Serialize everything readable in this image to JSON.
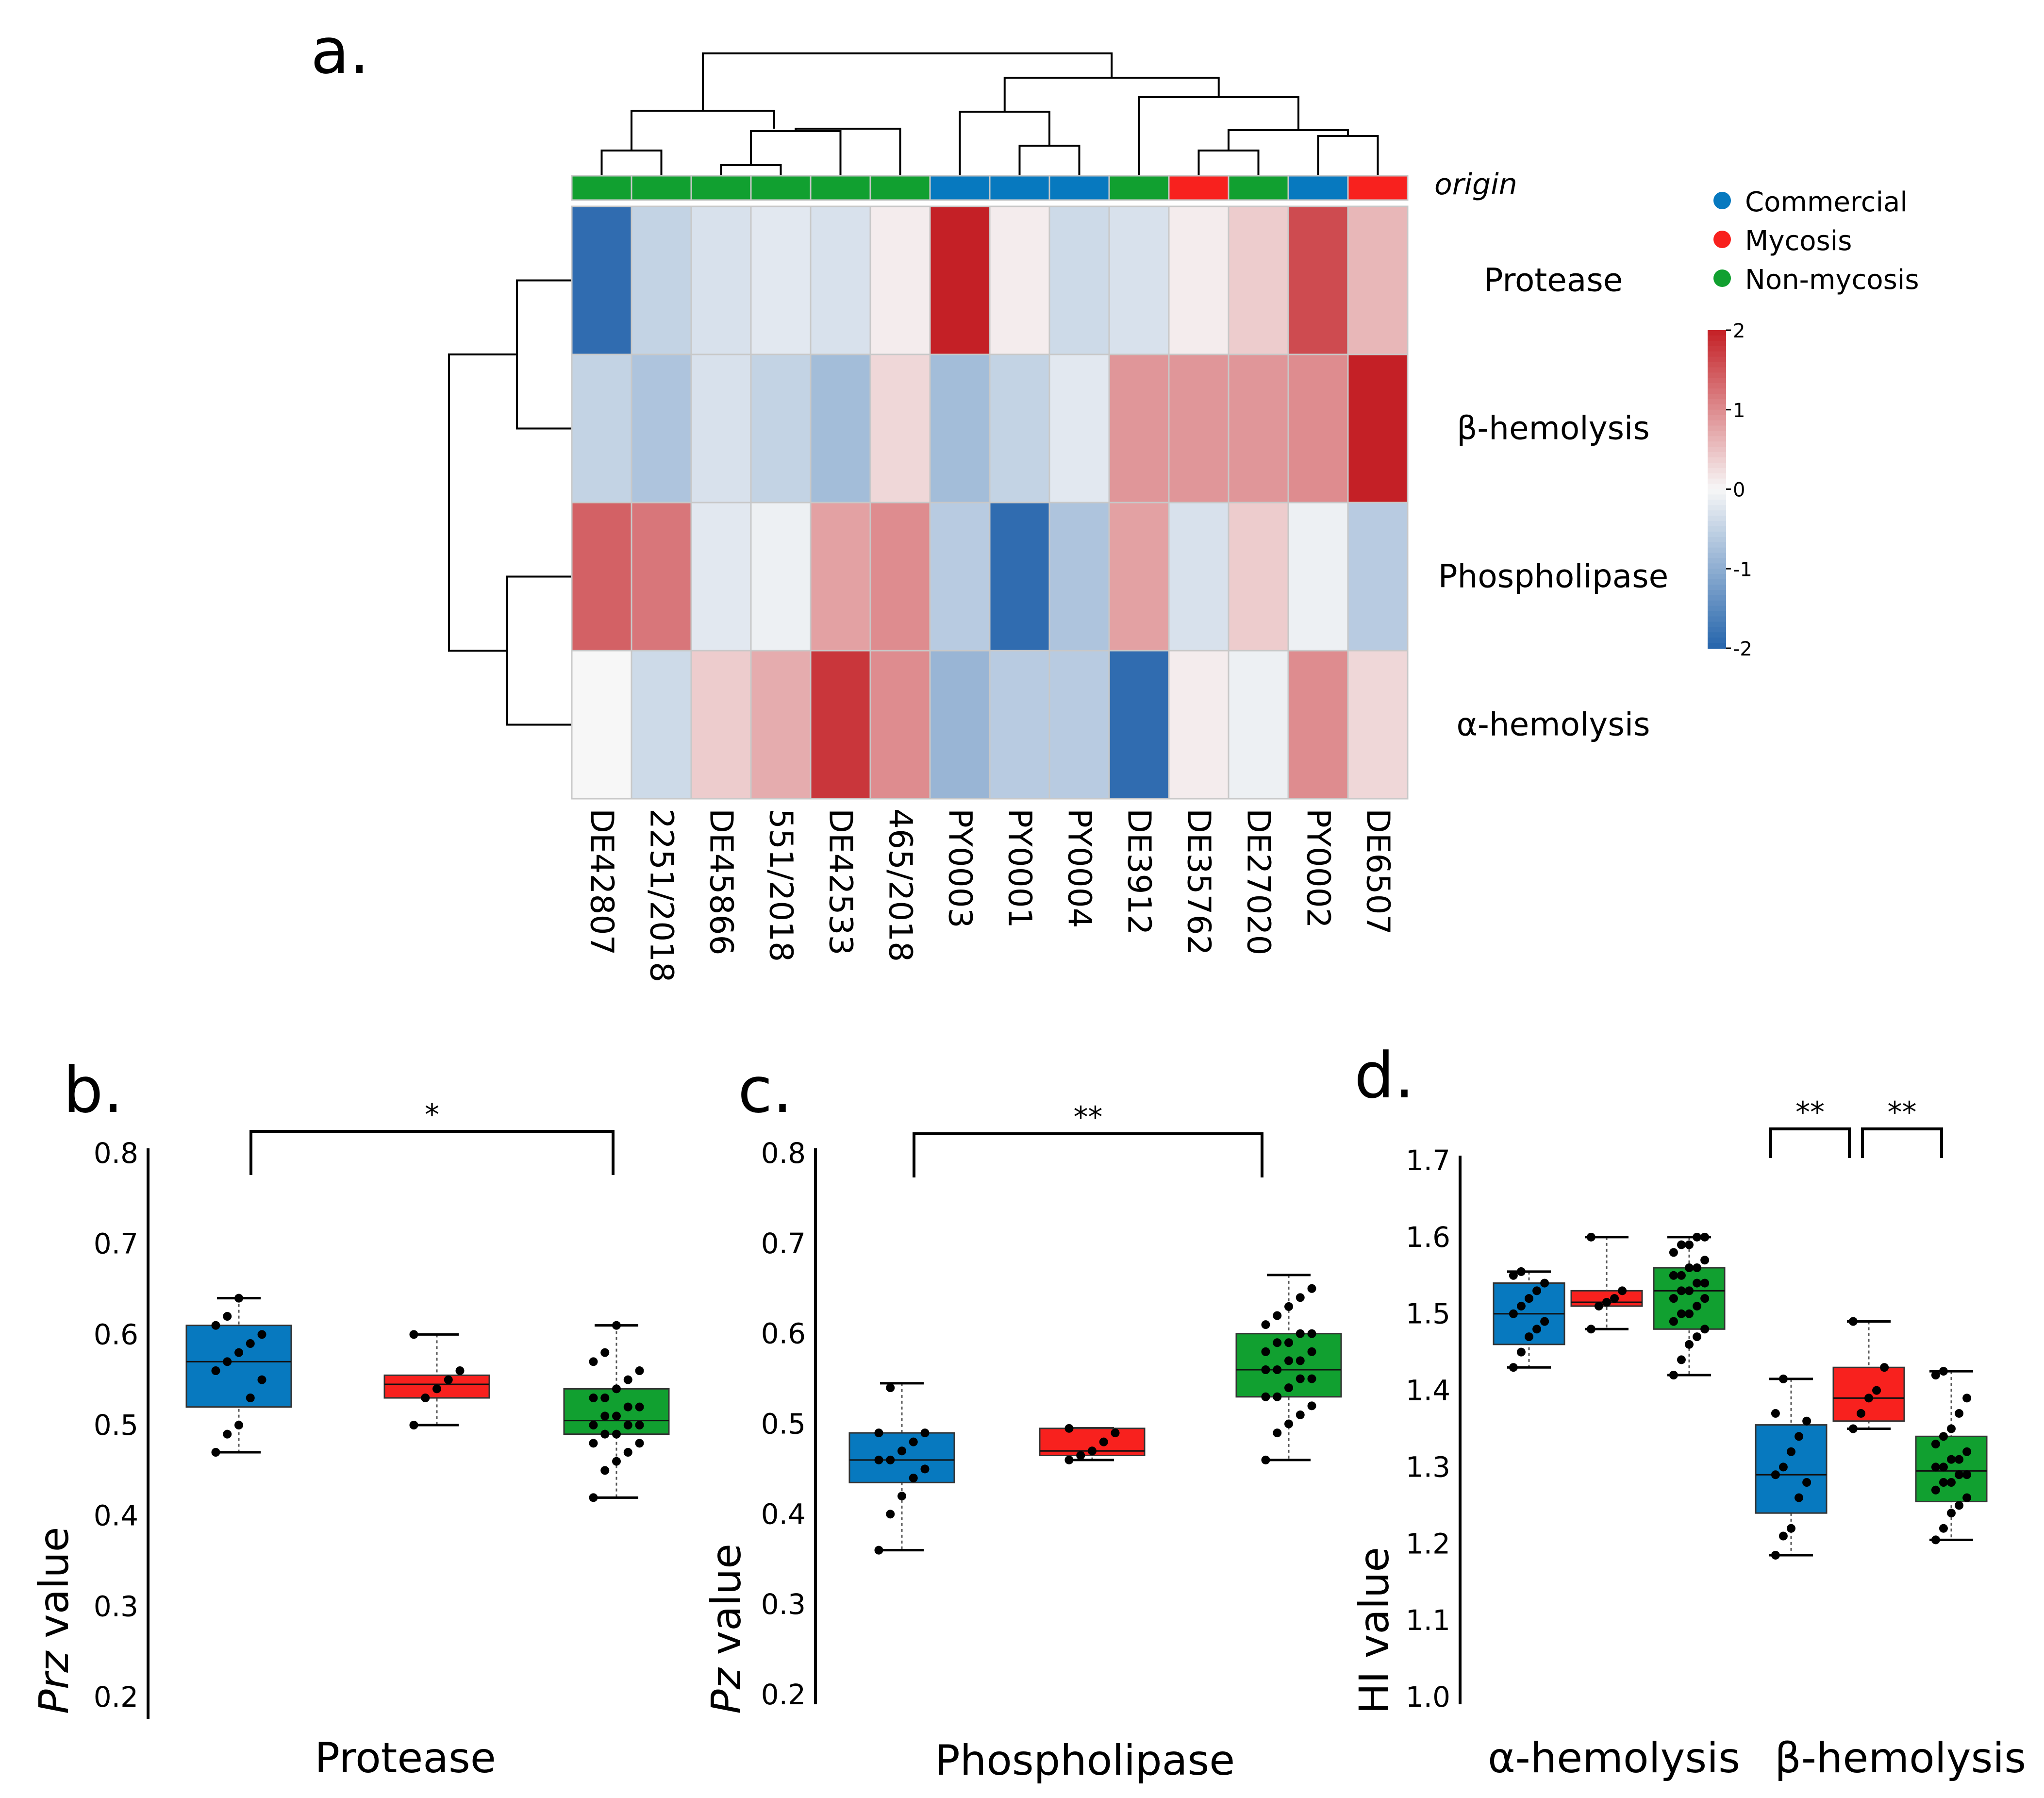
{
  "panel_labels": [
    "a.",
    "b.",
    "c.",
    "d."
  ],
  "colors": {
    "Commercial": "#0779bf",
    "Mycosis": "#f8211e",
    "Non-mycosis": "#11a030",
    "heat_low": "#2565ac",
    "heat_mid": "#f7f7f7",
    "heat_high": "#c42026"
  },
  "chart_data": [
    {
      "type": "heatmap",
      "panel": "a.",
      "annotation_title": "origin",
      "columns": [
        "DE42807",
        "2251/2018",
        "DE45866",
        "551/2018",
        "DE42533",
        "465/2018",
        "PY0003",
        "PY0001",
        "PY0004",
        "DE3912",
        "DE35762",
        "DE27020",
        "PY0002",
        "DE6507"
      ],
      "column_origin": [
        "Non-mycosis",
        "Non-mycosis",
        "Non-mycosis",
        "Non-mycosis",
        "Non-mycosis",
        "Non-mycosis",
        "Commercial",
        "Commercial",
        "Commercial",
        "Non-mycosis",
        "Mycosis",
        "Non-mycosis",
        "Commercial",
        "Mycosis"
      ],
      "rows": [
        "Protease",
        "β-hemolysis",
        "Phospholipase",
        "α-hemolysis"
      ],
      "values": [
        [
          -1.9,
          -0.5,
          -0.3,
          -0.2,
          -0.3,
          0.1,
          2.0,
          0.1,
          -0.4,
          -0.3,
          0.1,
          0.4,
          1.6,
          0.6
        ],
        [
          -0.5,
          -0.7,
          -0.3,
          -0.5,
          -0.8,
          0.3,
          -0.8,
          -0.5,
          -0.2,
          0.9,
          0.9,
          0.9,
          1.0,
          2.0
        ],
        [
          1.4,
          1.2,
          -0.2,
          -0.1,
          0.8,
          1.0,
          -0.6,
          -1.9,
          -0.7,
          0.8,
          -0.3,
          0.4,
          -0.1,
          -0.6
        ],
        [
          0.0,
          -0.4,
          0.4,
          0.7,
          1.8,
          1.0,
          -0.9,
          -0.6,
          -0.6,
          -1.9,
          0.1,
          -0.1,
          1.0,
          0.3
        ]
      ],
      "legend": {
        "entries": [
          "Commercial",
          "Mycosis",
          "Non-mycosis"
        ],
        "placement": "top-right"
      },
      "colorbar": {
        "ticks": [
          "2",
          "1",
          "0",
          "-1",
          "-2"
        ],
        "range": [
          -2,
          2
        ]
      },
      "column_dendrogram": true,
      "row_dendrogram": true
    },
    {
      "type": "box",
      "panel": "b.",
      "ylabel_italic": "Prz",
      "ylabel_rest": " value",
      "xlabel": "Protease",
      "yticks": [
        "0.2",
        "0.3",
        "0.4",
        "0.5",
        "0.6",
        "0.7",
        "0.8"
      ],
      "ylim": [
        0.2,
        0.8
      ],
      "groups": [
        {
          "group": "Commercial",
          "min": 0.47,
          "q1": 0.52,
          "median": 0.57,
          "q3": 0.61,
          "max": 0.64,
          "points": [
            0.47,
            0.49,
            0.5,
            0.53,
            0.55,
            0.56,
            0.57,
            0.58,
            0.59,
            0.6,
            0.61,
            0.62,
            0.64
          ]
        },
        {
          "group": "Mycosis",
          "min": 0.5,
          "q1": 0.53,
          "median": 0.545,
          "q3": 0.555,
          "max": 0.6,
          "points": [
            0.5,
            0.53,
            0.54,
            0.55,
            0.56,
            0.6
          ]
        },
        {
          "group": "Non-mycosis",
          "min": 0.42,
          "q1": 0.49,
          "median": 0.505,
          "q3": 0.54,
          "max": 0.61,
          "points": [
            0.42,
            0.45,
            0.46,
            0.47,
            0.48,
            0.48,
            0.49,
            0.49,
            0.5,
            0.5,
            0.5,
            0.51,
            0.51,
            0.52,
            0.52,
            0.53,
            0.53,
            0.54,
            0.55,
            0.56,
            0.57,
            0.58,
            0.61
          ]
        }
      ],
      "significance": [
        {
          "from": "Commercial",
          "to": "Non-mycosis",
          "label": "*"
        }
      ]
    },
    {
      "type": "box",
      "panel": "c.",
      "ylabel_italic": "Pz",
      "ylabel_rest": " value",
      "xlabel": "Phospholipase",
      "yticks": [
        "0.2",
        "0.3",
        "0.4",
        "0.5",
        "0.6",
        "0.7",
        "0.8"
      ],
      "ylim": [
        0.2,
        0.8
      ],
      "groups": [
        {
          "group": "Commercial",
          "min": 0.36,
          "q1": 0.435,
          "median": 0.46,
          "q3": 0.49,
          "max": 0.545,
          "points": [
            0.36,
            0.4,
            0.42,
            0.44,
            0.45,
            0.46,
            0.46,
            0.47,
            0.48,
            0.49,
            0.49,
            0.54
          ]
        },
        {
          "group": "Mycosis",
          "min": 0.46,
          "q1": 0.465,
          "median": 0.47,
          "q3": 0.495,
          "max": 0.495,
          "points": [
            0.46,
            0.465,
            0.47,
            0.48,
            0.49,
            0.495
          ]
        },
        {
          "group": "Non-mycosis",
          "min": 0.46,
          "q1": 0.53,
          "median": 0.56,
          "q3": 0.6,
          "max": 0.665,
          "points": [
            0.46,
            0.49,
            0.5,
            0.51,
            0.52,
            0.53,
            0.53,
            0.54,
            0.55,
            0.55,
            0.56,
            0.56,
            0.57,
            0.57,
            0.58,
            0.58,
            0.59,
            0.59,
            0.6,
            0.6,
            0.61,
            0.62,
            0.63,
            0.64,
            0.65
          ]
        }
      ],
      "significance": [
        {
          "from": "Commercial",
          "to": "Non-mycosis",
          "label": "**"
        }
      ]
    },
    {
      "type": "box",
      "panel": "d.",
      "ylabel_italic": "",
      "ylabel_rest": "HI value",
      "yticks": [
        "1.0",
        "1.1",
        "1.2",
        "1.3",
        "1.4",
        "1.5",
        "1.6",
        "1.7"
      ],
      "ylim": [
        1.0,
        1.7
      ],
      "categories": [
        "α-hemolysis",
        "β-hemolysis"
      ],
      "groups": [
        {
          "category": "α-hemolysis",
          "group": "Commercial",
          "min": 1.43,
          "q1": 1.46,
          "median": 1.5,
          "q3": 1.54,
          "max": 1.555,
          "points": [
            1.43,
            1.45,
            1.47,
            1.48,
            1.49,
            1.5,
            1.51,
            1.52,
            1.53,
            1.54,
            1.55,
            1.555
          ]
        },
        {
          "category": "α-hemolysis",
          "group": "Mycosis",
          "min": 1.48,
          "q1": 1.51,
          "median": 1.515,
          "q3": 1.53,
          "max": 1.6,
          "points": [
            1.48,
            1.51,
            1.515,
            1.52,
            1.53,
            1.6
          ]
        },
        {
          "category": "α-hemolysis",
          "group": "Non-mycosis",
          "min": 1.42,
          "q1": 1.48,
          "median": 1.53,
          "q3": 1.56,
          "max": 1.6,
          "points": [
            1.42,
            1.44,
            1.46,
            1.47,
            1.48,
            1.49,
            1.5,
            1.5,
            1.51,
            1.52,
            1.52,
            1.53,
            1.53,
            1.54,
            1.54,
            1.55,
            1.55,
            1.56,
            1.56,
            1.57,
            1.58,
            1.59,
            1.59,
            1.6,
            1.6
          ]
        },
        {
          "category": "β-hemolysis",
          "group": "Commercial",
          "min": 1.185,
          "q1": 1.24,
          "median": 1.29,
          "q3": 1.355,
          "max": 1.415,
          "points": [
            1.185,
            1.21,
            1.22,
            1.26,
            1.28,
            1.29,
            1.3,
            1.32,
            1.34,
            1.36,
            1.37,
            1.415
          ]
        },
        {
          "category": "β-hemolysis",
          "group": "Mycosis",
          "min": 1.35,
          "q1": 1.36,
          "median": 1.39,
          "q3": 1.43,
          "max": 1.49,
          "points": [
            1.35,
            1.37,
            1.39,
            1.4,
            1.43,
            1.49
          ]
        },
        {
          "category": "β-hemolysis",
          "group": "Non-mycosis",
          "min": 1.205,
          "q1": 1.255,
          "median": 1.295,
          "q3": 1.34,
          "max": 1.425,
          "points": [
            1.205,
            1.22,
            1.24,
            1.25,
            1.26,
            1.27,
            1.28,
            1.28,
            1.29,
            1.29,
            1.3,
            1.3,
            1.31,
            1.31,
            1.32,
            1.33,
            1.34,
            1.35,
            1.37,
            1.39,
            1.42,
            1.425
          ]
        }
      ],
      "significance": [
        {
          "category": "β-hemolysis",
          "from": "Commercial",
          "to": "Mycosis",
          "label": "**"
        },
        {
          "category": "β-hemolysis",
          "from": "Mycosis",
          "to": "Non-mycosis",
          "label": "**"
        }
      ]
    }
  ]
}
